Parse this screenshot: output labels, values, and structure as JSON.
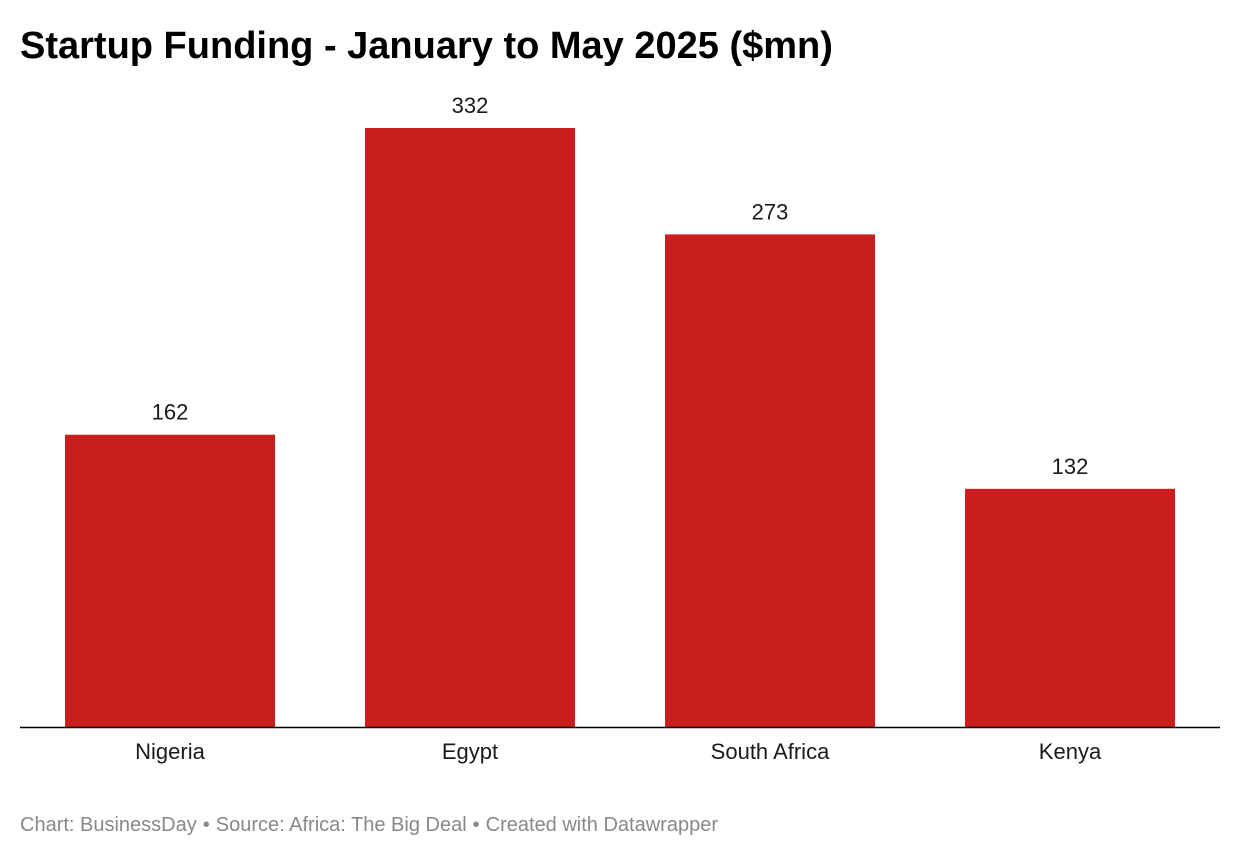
{
  "title": "Startup Funding - January to May 2025 ($mn)",
  "chart_data": {
    "type": "bar",
    "title": "Startup Funding - January to May 2025 ($mn)",
    "xlabel": "",
    "ylabel": "",
    "categories": [
      "Nigeria",
      "Egypt",
      "South Africa",
      "Kenya"
    ],
    "series": [
      {
        "values": [
          162,
          332,
          273,
          132
        ]
      }
    ],
    "ylim": [
      0,
      332
    ],
    "grid": false,
    "bar_color": "#c81e1e",
    "data_labels": true
  },
  "footer": {
    "chart_credit": "Chart: BusinessDay",
    "source": "Source: Africa: The Big Deal",
    "created_with": "Created with Datawrapper",
    "separator": "•"
  },
  "colors": {
    "bar": "#c81e1e",
    "baseline": "#000000",
    "footer_text": "#888888"
  }
}
